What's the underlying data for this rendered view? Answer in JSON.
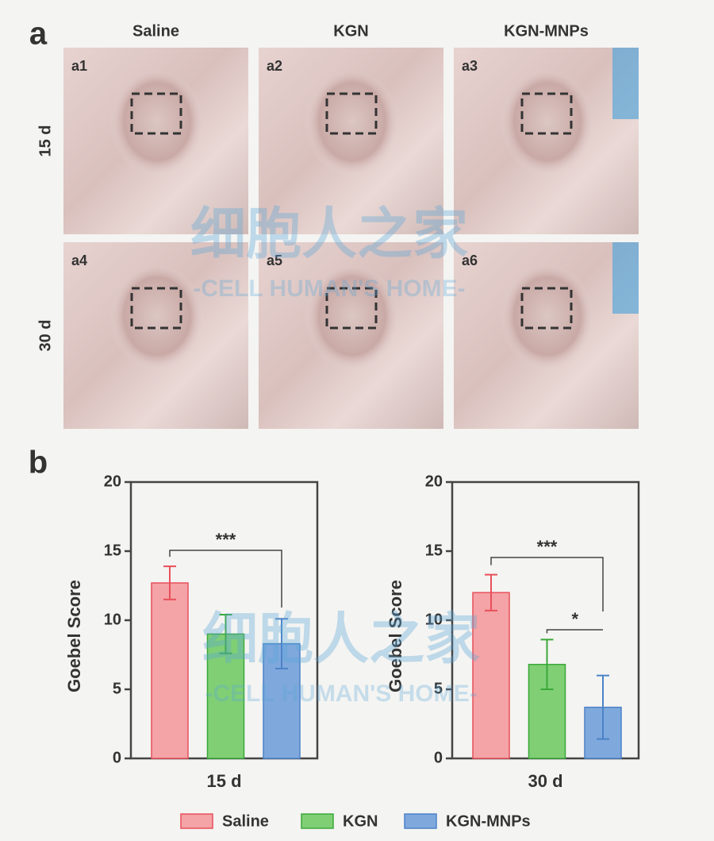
{
  "panel_a": {
    "label": "a",
    "columns": [
      "Saline",
      "KGN",
      "KGN-MNPs"
    ],
    "rows": [
      "15 d",
      "30 d"
    ],
    "photos": [
      "a1",
      "a2",
      "a3",
      "a4",
      "a5",
      "a6"
    ]
  },
  "panel_b": {
    "label": "b"
  },
  "watermark": {
    "title": "细胞人之家",
    "subtitle": "-CELL HUMAN'S HOME-"
  },
  "chart_data": [
    {
      "type": "bar",
      "xlabel": "15 d",
      "ylabel": "Goebel Score",
      "ylim": [
        0,
        20
      ],
      "yticks": [
        0,
        5,
        10,
        15,
        20
      ],
      "series": [
        {
          "name": "Saline",
          "color": "#f4a3a6",
          "edge": "#e8505a",
          "values": [
            12.7
          ],
          "errors": [
            1.2
          ]
        },
        {
          "name": "KGN",
          "color": "#80cf75",
          "edge": "#3aa83a",
          "values": [
            9.0
          ],
          "errors": [
            1.4
          ]
        },
        {
          "name": "KGN-MNPs",
          "color": "#7fa8dc",
          "edge": "#4c82c8",
          "values": [
            8.3
          ],
          "errors": [
            1.8
          ]
        }
      ],
      "annotations": [
        "***"
      ]
    },
    {
      "type": "bar",
      "xlabel": "30 d",
      "ylabel": "Goebel Score",
      "ylim": [
        0,
        20
      ],
      "yticks": [
        0,
        5,
        10,
        15,
        20
      ],
      "series": [
        {
          "name": "Saline",
          "color": "#f4a3a6",
          "edge": "#e8505a",
          "values": [
            12.0
          ],
          "errors": [
            1.3
          ]
        },
        {
          "name": "KGN",
          "color": "#80cf75",
          "edge": "#3aa83a",
          "values": [
            6.8
          ],
          "errors": [
            1.8
          ]
        },
        {
          "name": "KGN-MNPs",
          "color": "#7fa8dc",
          "edge": "#4c82c8",
          "values": [
            3.7
          ],
          "errors": [
            2.3
          ]
        }
      ],
      "annotations": [
        "***",
        "*"
      ]
    }
  ]
}
